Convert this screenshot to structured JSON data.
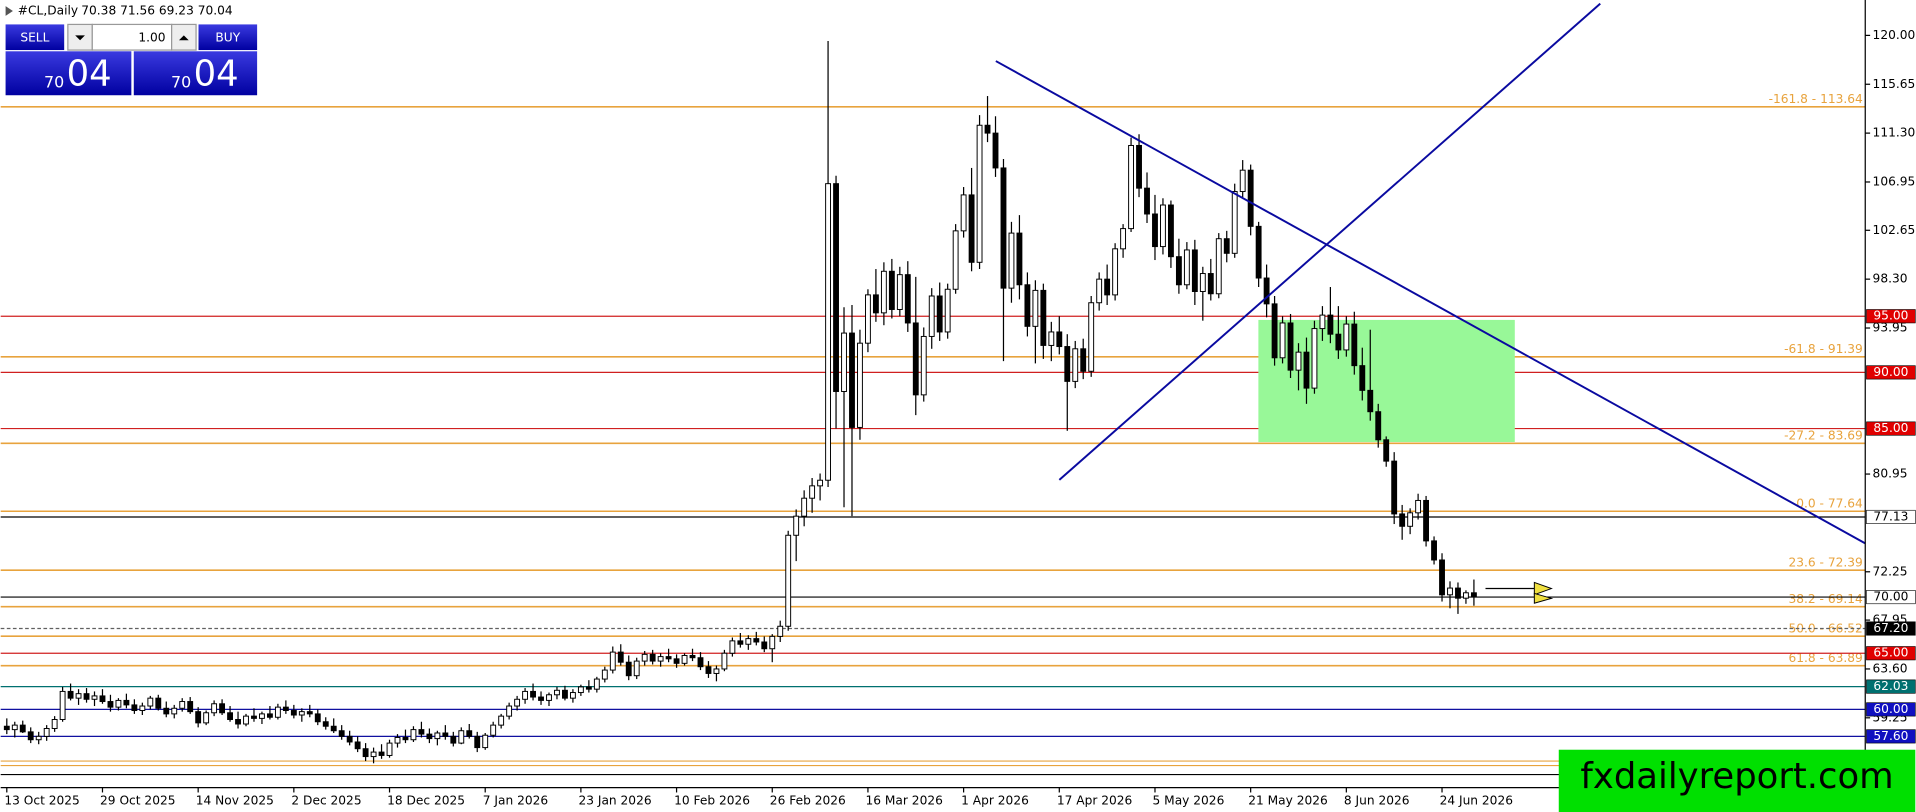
{
  "chart_data": {
    "type": "candlestick",
    "header": {
      "symbol": "#CL,Daily",
      "prices": "70.38 71.56 69.23 70.04"
    },
    "up_color": "#ffffff",
    "down_color": "#000000",
    "outline": "#000000",
    "ylim": [
      53.04,
      123.15
    ],
    "yticks": [
      {
        "value": 120,
        "label": "120.00"
      },
      {
        "value": 115.65,
        "label": "115.65"
      },
      {
        "value": 111.3,
        "label": "111.30"
      },
      {
        "value": 106.95,
        "label": "106.95"
      },
      {
        "value": 102.65,
        "label": "102.65"
      },
      {
        "value": 98.3,
        "label": "98.30"
      },
      {
        "value": 93.95,
        "label": "93.95"
      },
      {
        "value": 80.95,
        "label": "80.95"
      },
      {
        "value": 72.25,
        "label": "72.25"
      },
      {
        "value": 67.95,
        "label": "67.95"
      },
      {
        "value": 63.6,
        "label": "63.60"
      },
      {
        "value": 59.25,
        "label": "59.25"
      }
    ],
    "categories": [
      "13 Oct 2025",
      null,
      null,
      null,
      null,
      null,
      null,
      null,
      null,
      null,
      null,
      null,
      "29 Oct 2025",
      null,
      null,
      null,
      null,
      null,
      null,
      null,
      null,
      null,
      null,
      null,
      "14 Nov 2025",
      null,
      null,
      null,
      null,
      null,
      null,
      null,
      null,
      null,
      null,
      null,
      "2 Dec 2025",
      null,
      null,
      null,
      null,
      null,
      null,
      null,
      null,
      null,
      null,
      null,
      "18 Dec 2025",
      null,
      null,
      null,
      null,
      null,
      null,
      null,
      null,
      null,
      null,
      null,
      "7 Jan 2026",
      null,
      null,
      null,
      null,
      null,
      null,
      null,
      null,
      null,
      null,
      null,
      "23 Jan 2026",
      null,
      null,
      null,
      null,
      null,
      null,
      null,
      null,
      null,
      null,
      null,
      "10 Feb 2026",
      null,
      null,
      null,
      null,
      null,
      null,
      null,
      null,
      null,
      null,
      null,
      "26 Feb 2026",
      null,
      null,
      null,
      null,
      null,
      null,
      null,
      null,
      null,
      null,
      null,
      "16 Mar 2026",
      null,
      null,
      null,
      null,
      null,
      null,
      null,
      null,
      null,
      null,
      null,
      "1 Apr 2026",
      null,
      null,
      null,
      null,
      null,
      null,
      null,
      null,
      null,
      null,
      null,
      "17 Apr 2026",
      null,
      null,
      null,
      null,
      null,
      null,
      null,
      null,
      null,
      null,
      null,
      "5 May 2026",
      null,
      null,
      null,
      null,
      null,
      null,
      null,
      null,
      null,
      null,
      null,
      "21 May 2026",
      null,
      null,
      null,
      null,
      null,
      null,
      null,
      null,
      null,
      null,
      null,
      "8 Jun 2026",
      null,
      null,
      null,
      null,
      null,
      null,
      null,
      null,
      null,
      null,
      null,
      "24 Jun 2026",
      null,
      null,
      null,
      null
    ],
    "ohlc": [
      [
        58.5,
        59.2,
        57.8,
        58.2
      ],
      [
        58.2,
        58.9,
        57.5,
        58.6
      ],
      [
        58.6,
        59.0,
        57.9,
        58.0
      ],
      [
        58.0,
        58.4,
        57.0,
        57.3
      ],
      [
        57.3,
        58.0,
        56.9,
        57.6
      ],
      [
        57.6,
        58.6,
        57.2,
        58.3
      ],
      [
        58.3,
        59.4,
        58.0,
        59.1
      ],
      [
        59.1,
        62.0,
        58.9,
        61.6
      ],
      [
        61.6,
        62.3,
        60.8,
        61.0
      ],
      [
        61.0,
        61.8,
        60.4,
        61.4
      ],
      [
        61.4,
        61.9,
        60.6,
        60.9
      ],
      [
        60.9,
        61.6,
        60.3,
        61.2
      ],
      [
        61.2,
        61.8,
        60.5,
        60.7
      ],
      [
        60.7,
        61.3,
        59.8,
        60.2
      ],
      [
        60.2,
        61.0,
        59.9,
        60.8
      ],
      [
        60.8,
        61.4,
        60.1,
        60.4
      ],
      [
        60.4,
        60.9,
        59.6,
        59.9
      ],
      [
        59.9,
        60.6,
        59.5,
        60.3
      ],
      [
        60.3,
        61.2,
        60.0,
        61.0
      ],
      [
        61.0,
        61.3,
        59.9,
        60.1
      ],
      [
        60.1,
        60.7,
        59.3,
        59.6
      ],
      [
        59.6,
        60.4,
        59.2,
        60.1
      ],
      [
        60.1,
        61.0,
        59.8,
        60.7
      ],
      [
        60.7,
        61.1,
        59.6,
        59.8
      ],
      [
        59.8,
        60.2,
        58.4,
        58.8
      ],
      [
        58.8,
        59.9,
        58.6,
        59.7
      ],
      [
        59.7,
        60.8,
        59.4,
        60.5
      ],
      [
        60.5,
        60.9,
        59.5,
        59.7
      ],
      [
        59.7,
        60.3,
        58.9,
        59.1
      ],
      [
        59.1,
        59.8,
        58.3,
        58.7
      ],
      [
        58.7,
        59.6,
        58.5,
        59.4
      ],
      [
        59.4,
        60.1,
        58.9,
        59.2
      ],
      [
        59.2,
        59.8,
        58.7,
        59.6
      ],
      [
        59.6,
        60.3,
        59.1,
        59.3
      ],
      [
        59.3,
        60.5,
        59.1,
        60.2
      ],
      [
        60.2,
        60.8,
        59.6,
        59.9
      ],
      [
        59.9,
        60.4,
        59.2,
        59.5
      ],
      [
        59.5,
        60.1,
        58.9,
        59.8
      ],
      [
        59.8,
        60.4,
        59.3,
        59.6
      ],
      [
        59.6,
        60.0,
        58.6,
        58.9
      ],
      [
        58.9,
        59.3,
        58.2,
        58.5
      ],
      [
        58.5,
        59.2,
        57.9,
        58.1
      ],
      [
        58.1,
        58.6,
        57.3,
        57.6
      ],
      [
        57.6,
        58.1,
        56.8,
        57.1
      ],
      [
        57.1,
        57.6,
        56.2,
        56.5
      ],
      [
        56.5,
        57.0,
        55.4,
        55.8
      ],
      [
        55.8,
        56.6,
        55.2,
        56.2
      ],
      [
        56.2,
        56.9,
        55.6,
        55.9
      ],
      [
        55.9,
        57.3,
        55.7,
        57.0
      ],
      [
        57.0,
        57.8,
        56.6,
        57.5
      ],
      [
        57.5,
        58.2,
        57.0,
        57.3
      ],
      [
        57.3,
        58.5,
        57.1,
        58.2
      ],
      [
        58.2,
        58.9,
        57.5,
        57.8
      ],
      [
        57.8,
        58.3,
        57.0,
        57.4
      ],
      [
        57.4,
        58.1,
        56.8,
        57.9
      ],
      [
        57.9,
        58.6,
        57.3,
        57.6
      ],
      [
        57.6,
        58.0,
        56.7,
        57.0
      ],
      [
        57.0,
        58.4,
        56.9,
        58.1
      ],
      [
        58.1,
        58.7,
        57.4,
        57.6
      ],
      [
        57.6,
        58.0,
        56.2,
        56.6
      ],
      [
        56.6,
        57.9,
        56.4,
        57.7
      ],
      [
        57.7,
        58.9,
        57.5,
        58.6
      ],
      [
        58.6,
        59.6,
        58.3,
        59.4
      ],
      [
        59.4,
        60.6,
        59.1,
        60.3
      ],
      [
        60.3,
        61.2,
        59.9,
        60.9
      ],
      [
        60.9,
        61.9,
        60.5,
        61.6
      ],
      [
        61.6,
        62.3,
        60.8,
        61.1
      ],
      [
        61.1,
        61.6,
        60.4,
        60.8
      ],
      [
        60.8,
        61.5,
        60.3,
        61.3
      ],
      [
        61.3,
        62.0,
        60.9,
        61.7
      ],
      [
        61.7,
        62.1,
        60.8,
        61.0
      ],
      [
        61.0,
        61.8,
        60.6,
        61.5
      ],
      [
        61.5,
        62.2,
        61.2,
        62.0
      ],
      [
        62.0,
        62.6,
        61.5,
        61.8
      ],
      [
        61.8,
        62.9,
        61.5,
        62.7
      ],
      [
        62.7,
        63.8,
        62.4,
        63.5
      ],
      [
        63.5,
        65.6,
        63.2,
        65.1
      ],
      [
        65.1,
        65.8,
        63.9,
        64.2
      ],
      [
        64.2,
        64.8,
        62.6,
        63.0
      ],
      [
        63.0,
        64.6,
        62.7,
        64.3
      ],
      [
        64.3,
        65.2,
        63.9,
        64.9
      ],
      [
        64.9,
        65.3,
        64.0,
        64.3
      ],
      [
        64.3,
        65.0,
        63.8,
        64.7
      ],
      [
        64.7,
        65.4,
        64.2,
        64.5
      ],
      [
        64.5,
        64.9,
        63.7,
        64.1
      ],
      [
        64.1,
        65.0,
        63.9,
        64.8
      ],
      [
        64.8,
        65.4,
        64.3,
        64.6
      ],
      [
        64.6,
        65.1,
        63.5,
        63.8
      ],
      [
        63.8,
        64.3,
        62.8,
        63.2
      ],
      [
        63.2,
        63.9,
        62.5,
        63.6
      ],
      [
        63.6,
        65.3,
        63.4,
        65.0
      ],
      [
        65.0,
        66.4,
        64.7,
        66.1
      ],
      [
        66.1,
        66.8,
        65.5,
        65.8
      ],
      [
        65.8,
        66.6,
        65.3,
        66.3
      ],
      [
        66.3,
        66.9,
        65.7,
        66.0
      ],
      [
        66.0,
        66.5,
        65.1,
        65.4
      ],
      [
        65.4,
        66.7,
        64.2,
        66.5
      ],
      [
        66.5,
        67.9,
        66.0,
        67.4
      ],
      [
        67.4,
        75.9,
        67.0,
        75.5
      ],
      [
        75.5,
        77.8,
        73.2,
        77.2
      ],
      [
        77.2,
        79.5,
        76.3,
        78.8
      ],
      [
        78.8,
        80.6,
        77.5,
        79.9
      ],
      [
        79.9,
        81.0,
        78.6,
        80.4
      ],
      [
        80.4,
        119.5,
        79.8,
        106.8
      ],
      [
        106.8,
        107.5,
        85.0,
        88.3
      ],
      [
        88.3,
        95.8,
        78.0,
        93.5
      ],
      [
        93.5,
        96.0,
        77.2,
        85.1
      ],
      [
        85.1,
        93.8,
        84.0,
        92.6
      ],
      [
        92.6,
        97.4,
        91.8,
        96.9
      ],
      [
        96.9,
        99.2,
        94.5,
        95.3
      ],
      [
        95.3,
        99.8,
        94.2,
        99.0
      ],
      [
        99.0,
        100.1,
        94.8,
        95.6
      ],
      [
        95.6,
        99.4,
        95.0,
        98.7
      ],
      [
        98.7,
        99.9,
        93.6,
        94.4
      ],
      [
        94.4,
        98.5,
        86.2,
        88.0
      ],
      [
        88.0,
        94.0,
        87.4,
        93.2
      ],
      [
        93.2,
        97.5,
        92.1,
        96.8
      ],
      [
        96.8,
        98.0,
        92.8,
        93.6
      ],
      [
        93.6,
        97.9,
        93.0,
        97.4
      ],
      [
        97.4,
        103.2,
        97.0,
        102.6
      ],
      [
        102.6,
        106.5,
        102.0,
        105.8
      ],
      [
        105.8,
        108.2,
        99.0,
        99.8
      ],
      [
        99.8,
        112.9,
        99.2,
        112.0
      ],
      [
        112.0,
        114.6,
        110.5,
        111.3
      ],
      [
        111.3,
        112.8,
        107.4,
        108.2
      ],
      [
        108.2,
        109.0,
        91.0,
        97.5
      ],
      [
        97.5,
        103.4,
        96.2,
        102.4
      ],
      [
        102.4,
        104.0,
        96.5,
        97.8
      ],
      [
        97.8,
        98.9,
        93.2,
        94.1
      ],
      [
        94.1,
        98.2,
        90.8,
        97.3
      ],
      [
        97.3,
        97.9,
        91.2,
        92.4
      ],
      [
        92.4,
        94.5,
        91.0,
        93.6
      ],
      [
        93.6,
        95.0,
        91.6,
        92.3
      ],
      [
        92.3,
        93.4,
        84.8,
        89.2
      ],
      [
        89.2,
        92.8,
        88.6,
        92.1
      ],
      [
        92.1,
        93.0,
        89.4,
        90.1
      ],
      [
        90.1,
        96.8,
        89.6,
        96.2
      ],
      [
        96.2,
        98.9,
        95.5,
        98.3
      ],
      [
        98.3,
        99.6,
        96.0,
        96.9
      ],
      [
        96.9,
        101.5,
        96.4,
        101.0
      ],
      [
        101.0,
        103.2,
        100.2,
        102.8
      ],
      [
        102.8,
        110.9,
        102.5,
        110.2
      ],
      [
        110.2,
        111.2,
        105.6,
        106.4
      ],
      [
        106.4,
        107.8,
        103.3,
        104.1
      ],
      [
        104.1,
        105.8,
        100.0,
        101.2
      ],
      [
        101.2,
        105.5,
        100.5,
        104.9
      ],
      [
        104.9,
        105.3,
        99.3,
        100.3
      ],
      [
        100.3,
        101.9,
        97.0,
        97.8
      ],
      [
        97.8,
        101.6,
        97.4,
        100.9
      ],
      [
        100.9,
        101.8,
        96.0,
        97.2
      ],
      [
        97.2,
        99.4,
        94.6,
        98.8
      ],
      [
        98.8,
        100.1,
        96.4,
        97.0
      ],
      [
        97.0,
        102.4,
        96.6,
        101.9
      ],
      [
        101.9,
        102.6,
        99.8,
        100.6
      ],
      [
        100.6,
        106.8,
        100.2,
        106.1
      ],
      [
        106.1,
        108.9,
        105.6,
        108.0
      ],
      [
        108.0,
        108.5,
        102.2,
        103.0
      ],
      [
        103.0,
        103.4,
        97.6,
        98.4
      ],
      [
        98.4,
        99.6,
        94.9,
        96.1
      ],
      [
        96.1,
        96.8,
        90.6,
        91.3
      ],
      [
        91.3,
        95.0,
        90.8,
        94.4
      ],
      [
        94.4,
        95.2,
        89.5,
        90.2
      ],
      [
        90.2,
        92.6,
        88.4,
        91.8
      ],
      [
        91.8,
        93.1,
        87.2,
        88.6
      ],
      [
        88.6,
        94.6,
        88.1,
        93.9
      ],
      [
        93.9,
        95.9,
        92.8,
        95.1
      ],
      [
        95.1,
        97.6,
        92.6,
        93.4
      ],
      [
        93.4,
        95.9,
        91.2,
        92.0
      ],
      [
        92.0,
        95.0,
        91.4,
        94.3
      ],
      [
        94.3,
        95.4,
        89.8,
        90.6
      ],
      [
        90.6,
        92.2,
        87.5,
        88.4
      ],
      [
        88.4,
        93.8,
        85.7,
        86.5
      ],
      [
        86.5,
        87.2,
        83.3,
        84.0
      ],
      [
        84.0,
        84.3,
        81.6,
        82.1
      ],
      [
        82.1,
        82.9,
        76.5,
        77.4
      ],
      [
        77.4,
        78.2,
        75.1,
        76.3
      ],
      [
        76.3,
        77.9,
        75.6,
        77.5
      ],
      [
        77.5,
        79.2,
        76.9,
        78.6
      ],
      [
        78.6,
        79.0,
        74.5,
        75.0
      ],
      [
        75.0,
        75.4,
        72.9,
        73.3
      ],
      [
        73.3,
        73.9,
        69.6,
        70.2
      ],
      [
        70.2,
        71.4,
        69.0,
        70.8
      ],
      [
        70.8,
        71.3,
        68.5,
        69.9
      ],
      [
        69.9,
        70.6,
        69.4,
        70.38
      ],
      [
        70.38,
        71.56,
        69.23,
        70.04
      ]
    ],
    "fib_levels": [
      {
        "value": 113.64,
        "label": "-161.8 - 113.64",
        "color": "#e8a33d"
      },
      {
        "value": 91.39,
        "label": "-61.8 - 91.39",
        "color": "#e8a33d"
      },
      {
        "value": 83.69,
        "label": "-27.2 - 83.69",
        "color": "#e8a33d"
      },
      {
        "value": 77.64,
        "label": "0.0 - 77.64",
        "color": "#e8a33d"
      },
      {
        "value": 72.39,
        "label": "23.6 - 72.39",
        "color": "#e8a33d"
      },
      {
        "value": 69.14,
        "label": "38.2 - 69.14",
        "color": "#e8a33d"
      },
      {
        "value": 66.52,
        "label": "50.0 - 66.52",
        "color": "#e8a33d"
      },
      {
        "value": 63.89,
        "label": "61.8 - 63.89",
        "color": "#e8a33d"
      }
    ],
    "levels": [
      {
        "value": 95,
        "label": "95.00",
        "color": "#d02020",
        "tag_color": "#e00000",
        "text_color": "#ffffff"
      },
      {
        "value": 90,
        "label": "90.00",
        "color": "#d02020",
        "tag_color": "#e00000",
        "text_color": "#ffffff"
      },
      {
        "value": 85,
        "label": "85.00",
        "color": "#d02020",
        "tag_color": "#e00000",
        "text_color": "#ffffff"
      },
      {
        "value": 77.13,
        "label": "77.13",
        "color": "#000000",
        "tag_color": "#ffffff",
        "text_color": "#000000"
      },
      {
        "value": 70,
        "label": "70.00",
        "color": "#000000",
        "tag_color": "#ffffff",
        "text_color": "#000000"
      },
      {
        "value": 67.2,
        "label": "67.20",
        "color": "#606060",
        "tag_color": "#000000",
        "text_color": "#ffffff",
        "dashed": true
      },
      {
        "value": 65,
        "label": "65.00",
        "color": "#d02020",
        "tag_color": "#e00000",
        "text_color": "#ffffff"
      },
      {
        "value": 62.03,
        "label": "62.03",
        "color": "#007070",
        "tag_color": "#007070",
        "text_color": "#ffffff"
      },
      {
        "value": 60,
        "label": "60.00",
        "color": "#1010a0",
        "tag_color": "#1010c0",
        "text_color": "#ffffff"
      },
      {
        "value": 57.6,
        "label": "57.60",
        "color": "#1010a0",
        "tag_color": "#1010c0",
        "text_color": "#ffffff"
      },
      {
        "value": 55.4,
        "color": "#e8a33d"
      },
      {
        "value": 55.0,
        "color": "#e8a33d"
      },
      {
        "value": 54.2,
        "color": "#000000"
      }
    ]
  },
  "trade_panel": {
    "sell": "SELL",
    "buy": "BUY",
    "volume": "1.00",
    "sell_small": "70",
    "sell_big": "04",
    "buy_small": "70",
    "buy_big": "04"
  },
  "watermark": "fxdailyreport.com"
}
